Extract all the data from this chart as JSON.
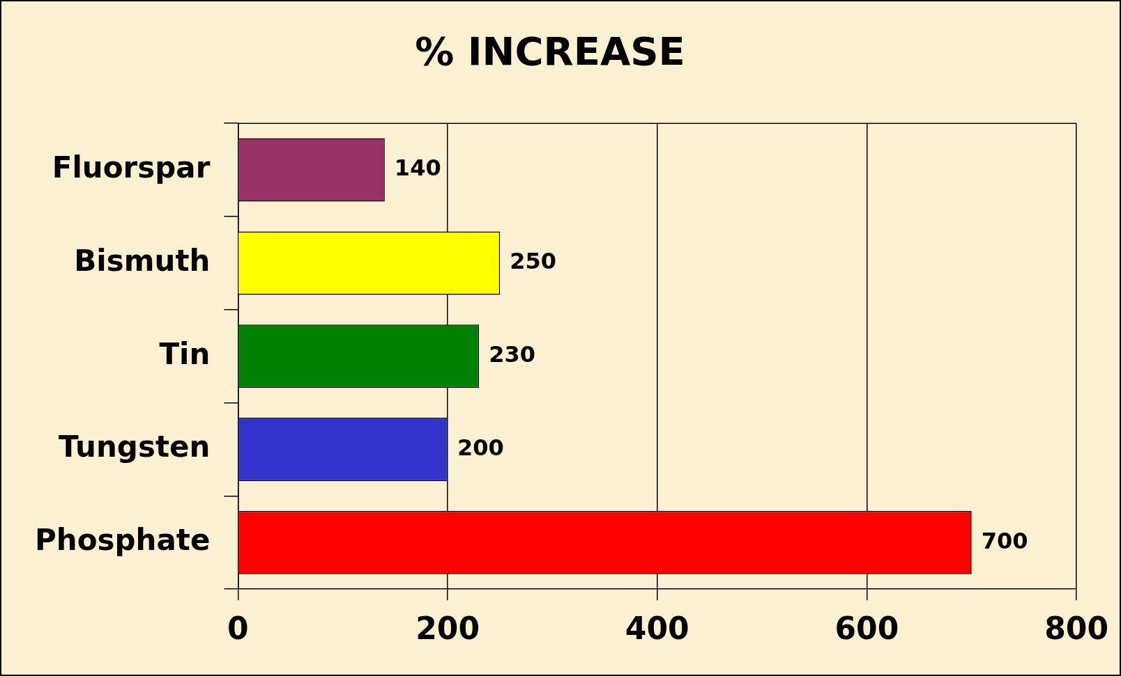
{
  "chart_data": {
    "type": "bar",
    "orientation": "horizontal",
    "title": "% INCREASE",
    "categories": [
      "Fluorspar",
      "Bismuth",
      "Tin",
      "Tungsten",
      "Phosphate"
    ],
    "values": [
      140,
      250,
      230,
      200,
      700
    ],
    "colors": [
      "#993366",
      "#ffff00",
      "#008000",
      "#3333cc",
      "#ff0000"
    ],
    "xlim": [
      0,
      800
    ],
    "xticks": [
      0,
      200,
      400,
      600,
      800
    ],
    "grid": "x",
    "data_labels": true,
    "legend": false
  }
}
